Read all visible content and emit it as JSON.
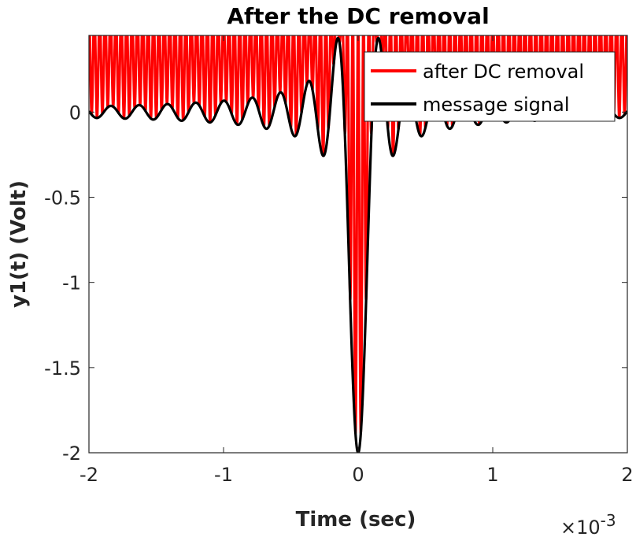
{
  "chart_data": {
    "type": "line",
    "title": "After the DC removal",
    "xlabel": "Time (sec)",
    "ylabel": "y1(t)  (Volt)",
    "x_exponent": {
      "base": "×10",
      "power": "-3"
    },
    "xlim": [
      -0.002,
      0.002
    ],
    "ylim": [
      -2,
      0.45
    ],
    "x_ticks": [
      -0.002,
      -0.001,
      0,
      0.001,
      0.002
    ],
    "x_tick_labels": [
      "-2",
      "-1",
      "0",
      "1",
      "2"
    ],
    "y_ticks": [
      0,
      -0.5,
      -1,
      -1.5,
      -2
    ],
    "y_tick_labels": [
      "0",
      "-0.5",
      "-1",
      "-1.5",
      "-2"
    ],
    "grid": false,
    "legend_position": "top-right",
    "series": [
      {
        "name": "after DC removal",
        "color": "#ff0000",
        "description": "modulated carrier oscillating rapidly between the message envelope and the top of the axes",
        "model": {
          "kind": "sinc_carrier",
          "peak": -2.0,
          "zero_spacing": 0.000105,
          "carrier_cycles": 100
        }
      },
      {
        "name": "message signal",
        "color": "#000000",
        "model": {
          "kind": "sinc",
          "peak": -2.0,
          "zero_spacing": 0.000105
        }
      }
    ]
  }
}
